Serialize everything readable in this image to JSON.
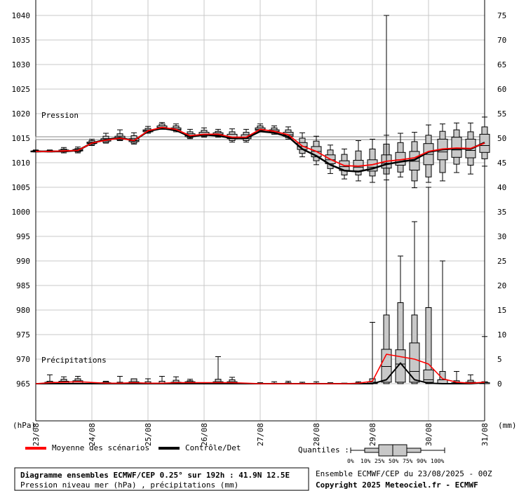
{
  "title_box": {
    "line1": "Diagramme ensembles ECMWF/CEP 0.25° sur 192h : 41.9N 12.5E",
    "line2": "Pression niveau mer (hPa) , précipitations (mm)"
  },
  "footer": {
    "run": "Ensemble ECMWF/CEP du 23/08/2025 - 00Z",
    "copyright": "Copyright 2025 Meteociel.fr - ECMWF"
  },
  "legend": {
    "mean_label": "Moyenne des scénarios",
    "control_label": "Contrôle/Det",
    "quantiles_label": "Quantiles :",
    "quantile_ticks": [
      "0%",
      "10%",
      "25%",
      "50%",
      "75%",
      "90%",
      "100%"
    ],
    "mean_color": "#ff0000",
    "control_color": "#000000"
  },
  "chart_data": {
    "type": "box",
    "left_axis_label": "(hPa)",
    "right_axis_label": "(mm)",
    "pressure_panel_label": "Pression",
    "precip_panel_label": "Précipitations",
    "left_ticks": [
      1040,
      1035,
      1030,
      1025,
      1020,
      1015,
      1010,
      1005,
      1000,
      995,
      990,
      985,
      980,
      975,
      970,
      965
    ],
    "right_ticks": [
      75,
      70,
      65,
      60,
      55,
      50,
      45,
      40,
      35,
      30,
      25,
      20,
      15,
      10,
      5,
      0
    ],
    "date_labels": [
      "23/08",
      "24/08",
      "25/08",
      "26/08",
      "27/08",
      "28/08",
      "29/08",
      "30/08",
      "31/08"
    ],
    "pressure_ylim": [
      965,
      1040
    ],
    "precip_ylim": [
      0,
      75
    ],
    "x_hours_range": [
      0,
      192
    ],
    "reference_line_hpa": 1015,
    "pressure": {
      "hours": [
        0,
        6,
        12,
        18,
        24,
        30,
        36,
        42,
        48,
        54,
        60,
        66,
        72,
        78,
        84,
        90,
        96,
        102,
        108,
        114,
        120,
        126,
        132,
        138,
        144,
        150,
        156,
        162,
        168,
        174,
        180,
        186,
        192
      ],
      "p0": [
        1012.2,
        1012.2,
        1012.0,
        1012.0,
        1013.5,
        1014.0,
        1014.5,
        1013.8,
        1016.0,
        1016.8,
        1016.3,
        1014.9,
        1015.2,
        1015.2,
        1014.2,
        1014.2,
        1016.3,
        1015.8,
        1014.8,
        1011.2,
        1009.6,
        1007.8,
        1006.7,
        1006.3,
        1006.0,
        1006.5,
        1007.1,
        1004.9,
        1006.0,
        1006.3,
        1008.0,
        1007.7,
        1009.3
      ],
      "p10": [
        1012.2,
        1012.2,
        1012.2,
        1012.2,
        1013.7,
        1014.1,
        1014.6,
        1014.0,
        1016.2,
        1016.9,
        1016.5,
        1015.1,
        1015.4,
        1015.4,
        1014.5,
        1014.5,
        1016.5,
        1016.0,
        1015.1,
        1011.9,
        1010.4,
        1008.8,
        1007.5,
        1007.5,
        1007.3,
        1007.7,
        1008.1,
        1006.3,
        1007.1,
        1008.0,
        1009.7,
        1009.5,
        1010.8
      ],
      "p25": [
        1012.2,
        1012.2,
        1012.3,
        1012.4,
        1013.9,
        1014.4,
        1014.8,
        1014.3,
        1016.3,
        1017.0,
        1016.6,
        1015.3,
        1015.6,
        1015.6,
        1014.9,
        1014.9,
        1016.6,
        1016.2,
        1015.4,
        1012.7,
        1011.2,
        1009.8,
        1008.4,
        1008.3,
        1008.3,
        1008.9,
        1009.5,
        1008.5,
        1009.6,
        1010.6,
        1011.1,
        1011.0,
        1012.1
      ],
      "p50": [
        1012.3,
        1012.3,
        1012.4,
        1012.5,
        1014.0,
        1014.6,
        1015.0,
        1014.5,
        1016.5,
        1017.2,
        1016.8,
        1015.5,
        1015.8,
        1015.8,
        1015.2,
        1015.2,
        1016.8,
        1016.4,
        1015.7,
        1013.3,
        1012.3,
        1010.6,
        1009.2,
        1009.1,
        1009.1,
        1009.9,
        1010.6,
        1010.3,
        1011.7,
        1012.2,
        1012.6,
        1012.5,
        1013.5
      ],
      "p75": [
        1012.4,
        1012.4,
        1012.6,
        1012.7,
        1014.2,
        1014.9,
        1015.4,
        1014.9,
        1016.7,
        1017.5,
        1017.1,
        1015.9,
        1016.2,
        1016.1,
        1015.8,
        1015.7,
        1017.1,
        1016.7,
        1016.2,
        1014.1,
        1013.3,
        1011.6,
        1010.4,
        1010.5,
        1010.6,
        1011.6,
        1012.1,
        1012.3,
        1013.9,
        1014.8,
        1015.2,
        1014.8,
        1015.8
      ],
      "p90": [
        1012.5,
        1012.5,
        1012.8,
        1012.9,
        1014.5,
        1015.4,
        1015.9,
        1015.5,
        1017.0,
        1017.9,
        1017.5,
        1016.3,
        1016.6,
        1016.4,
        1016.3,
        1016.2,
        1017.5,
        1017.1,
        1016.7,
        1015.0,
        1014.4,
        1012.6,
        1011.7,
        1012.4,
        1012.8,
        1013.8,
        1014.1,
        1014.3,
        1015.6,
        1016.4,
        1016.7,
        1016.3,
        1017.3
      ],
      "p100": [
        1012.6,
        1012.6,
        1013.1,
        1013.2,
        1014.8,
        1016.0,
        1016.7,
        1016.1,
        1017.4,
        1018.2,
        1017.9,
        1016.8,
        1017.1,
        1016.8,
        1016.9,
        1016.8,
        1017.9,
        1017.5,
        1017.3,
        1016.1,
        1015.4,
        1013.6,
        1012.8,
        1014.5,
        1014.8,
        1015.6,
        1016.0,
        1016.2,
        1017.7,
        1017.9,
        1018.1,
        1018.1,
        1019.3
      ],
      "mean": [
        1012.3,
        1012.3,
        1012.4,
        1012.5,
        1014.0,
        1014.6,
        1015.0,
        1014.5,
        1016.5,
        1017.2,
        1016.8,
        1015.5,
        1015.8,
        1015.8,
        1015.2,
        1015.2,
        1016.8,
        1016.4,
        1015.7,
        1013.4,
        1012.3,
        1010.7,
        1009.4,
        1009.3,
        1009.6,
        1010.3,
        1010.6,
        1011.0,
        1012.3,
        1012.8,
        1013.0,
        1012.9,
        1014.0
      ],
      "control": [
        1012.3,
        1012.3,
        1012.3,
        1012.5,
        1014.0,
        1014.7,
        1015.1,
        1014.5,
        1016.4,
        1017.0,
        1016.6,
        1015.3,
        1015.7,
        1015.5,
        1015.0,
        1015.0,
        1016.4,
        1016.1,
        1015.3,
        1012.8,
        1011.4,
        1009.6,
        1008.4,
        1008.2,
        1008.8,
        1009.7,
        1010.2,
        1010.6,
        1012.2,
        1012.7,
        1012.9,
        1012.8,
        1014.1
      ]
    },
    "precipitation": {
      "hours": [
        6,
        12,
        18,
        30,
        36,
        42,
        48,
        54,
        60,
        66,
        78,
        84,
        96,
        102,
        108,
        114,
        120,
        126,
        132,
        138,
        144,
        150,
        156,
        162,
        168,
        174,
        180,
        186,
        192
      ],
      "p0": [
        0,
        0,
        0,
        0,
        0,
        0,
        0,
        0,
        0,
        0,
        0,
        0,
        0,
        0,
        0,
        0,
        0,
        0,
        0,
        0,
        0,
        0,
        0,
        0,
        0,
        0,
        0,
        0,
        0
      ],
      "p10": [
        0,
        0,
        0,
        0,
        0,
        0,
        0,
        0,
        0,
        0,
        0,
        0,
        0,
        0,
        0,
        0,
        0,
        0,
        0,
        0,
        0,
        0,
        0,
        0,
        0,
        0,
        0,
        0,
        0
      ],
      "p25": [
        0,
        0,
        0,
        0,
        0,
        0,
        0,
        0,
        0,
        0,
        0,
        0,
        0,
        0,
        0,
        0,
        0,
        0,
        0,
        0,
        0,
        0.3,
        0.3,
        0.3,
        0.3,
        0,
        0,
        0,
        0
      ],
      "p50": [
        0,
        0,
        0,
        0,
        0,
        0,
        0,
        0,
        0,
        0,
        0,
        0,
        0,
        0,
        0,
        0,
        0,
        0,
        0,
        0,
        0,
        3.5,
        4.0,
        2.5,
        0.8,
        0,
        0,
        0,
        0
      ],
      "p75": [
        0.3,
        0.5,
        0.6,
        0.2,
        0.1,
        0.4,
        0.1,
        0.1,
        0.3,
        0.4,
        0.4,
        0.4,
        0,
        0,
        0,
        0,
        0,
        0,
        0,
        0,
        0.3,
        7.0,
        6.9,
        8.3,
        2.8,
        0.8,
        0.2,
        0.3,
        0.2
      ],
      "p90": [
        0.5,
        0.9,
        1.0,
        0.4,
        0.3,
        1.0,
        0.4,
        0.5,
        0.7,
        0.6,
        0.9,
        0.8,
        0.1,
        0.1,
        0.2,
        0.1,
        0.1,
        0.1,
        0.1,
        0.2,
        1.0,
        14.0,
        16.5,
        14.0,
        15.5,
        2.5,
        0.6,
        0.7,
        0.4
      ],
      "p100": [
        1.8,
        1.4,
        1.5,
        0.5,
        1.5,
        0.5,
        1.0,
        1.5,
        1.4,
        0.9,
        5.5,
        1.3,
        0.2,
        0.4,
        0.5,
        0.3,
        0.4,
        0.2,
        0.1,
        0.4,
        12.5,
        75,
        26,
        33,
        40,
        25,
        2.5,
        1.8,
        9.6
      ],
      "mean": [
        0.2,
        0.3,
        0.4,
        0.1,
        0.1,
        0.2,
        0.1,
        0.1,
        0.2,
        0.2,
        0.2,
        0.2,
        0,
        0,
        0,
        0,
        0,
        0,
        0,
        0.1,
        0.5,
        6.0,
        5.5,
        5.0,
        4.0,
        1.0,
        0.3,
        0.1,
        0.3
      ],
      "control": [
        0,
        0,
        0,
        0,
        0,
        0,
        0,
        0,
        0,
        0,
        0,
        0,
        0,
        0,
        0,
        0,
        0,
        0,
        0,
        0,
        0,
        0.8,
        4.2,
        0.8,
        0.1,
        0,
        0,
        0,
        0.2
      ]
    }
  }
}
